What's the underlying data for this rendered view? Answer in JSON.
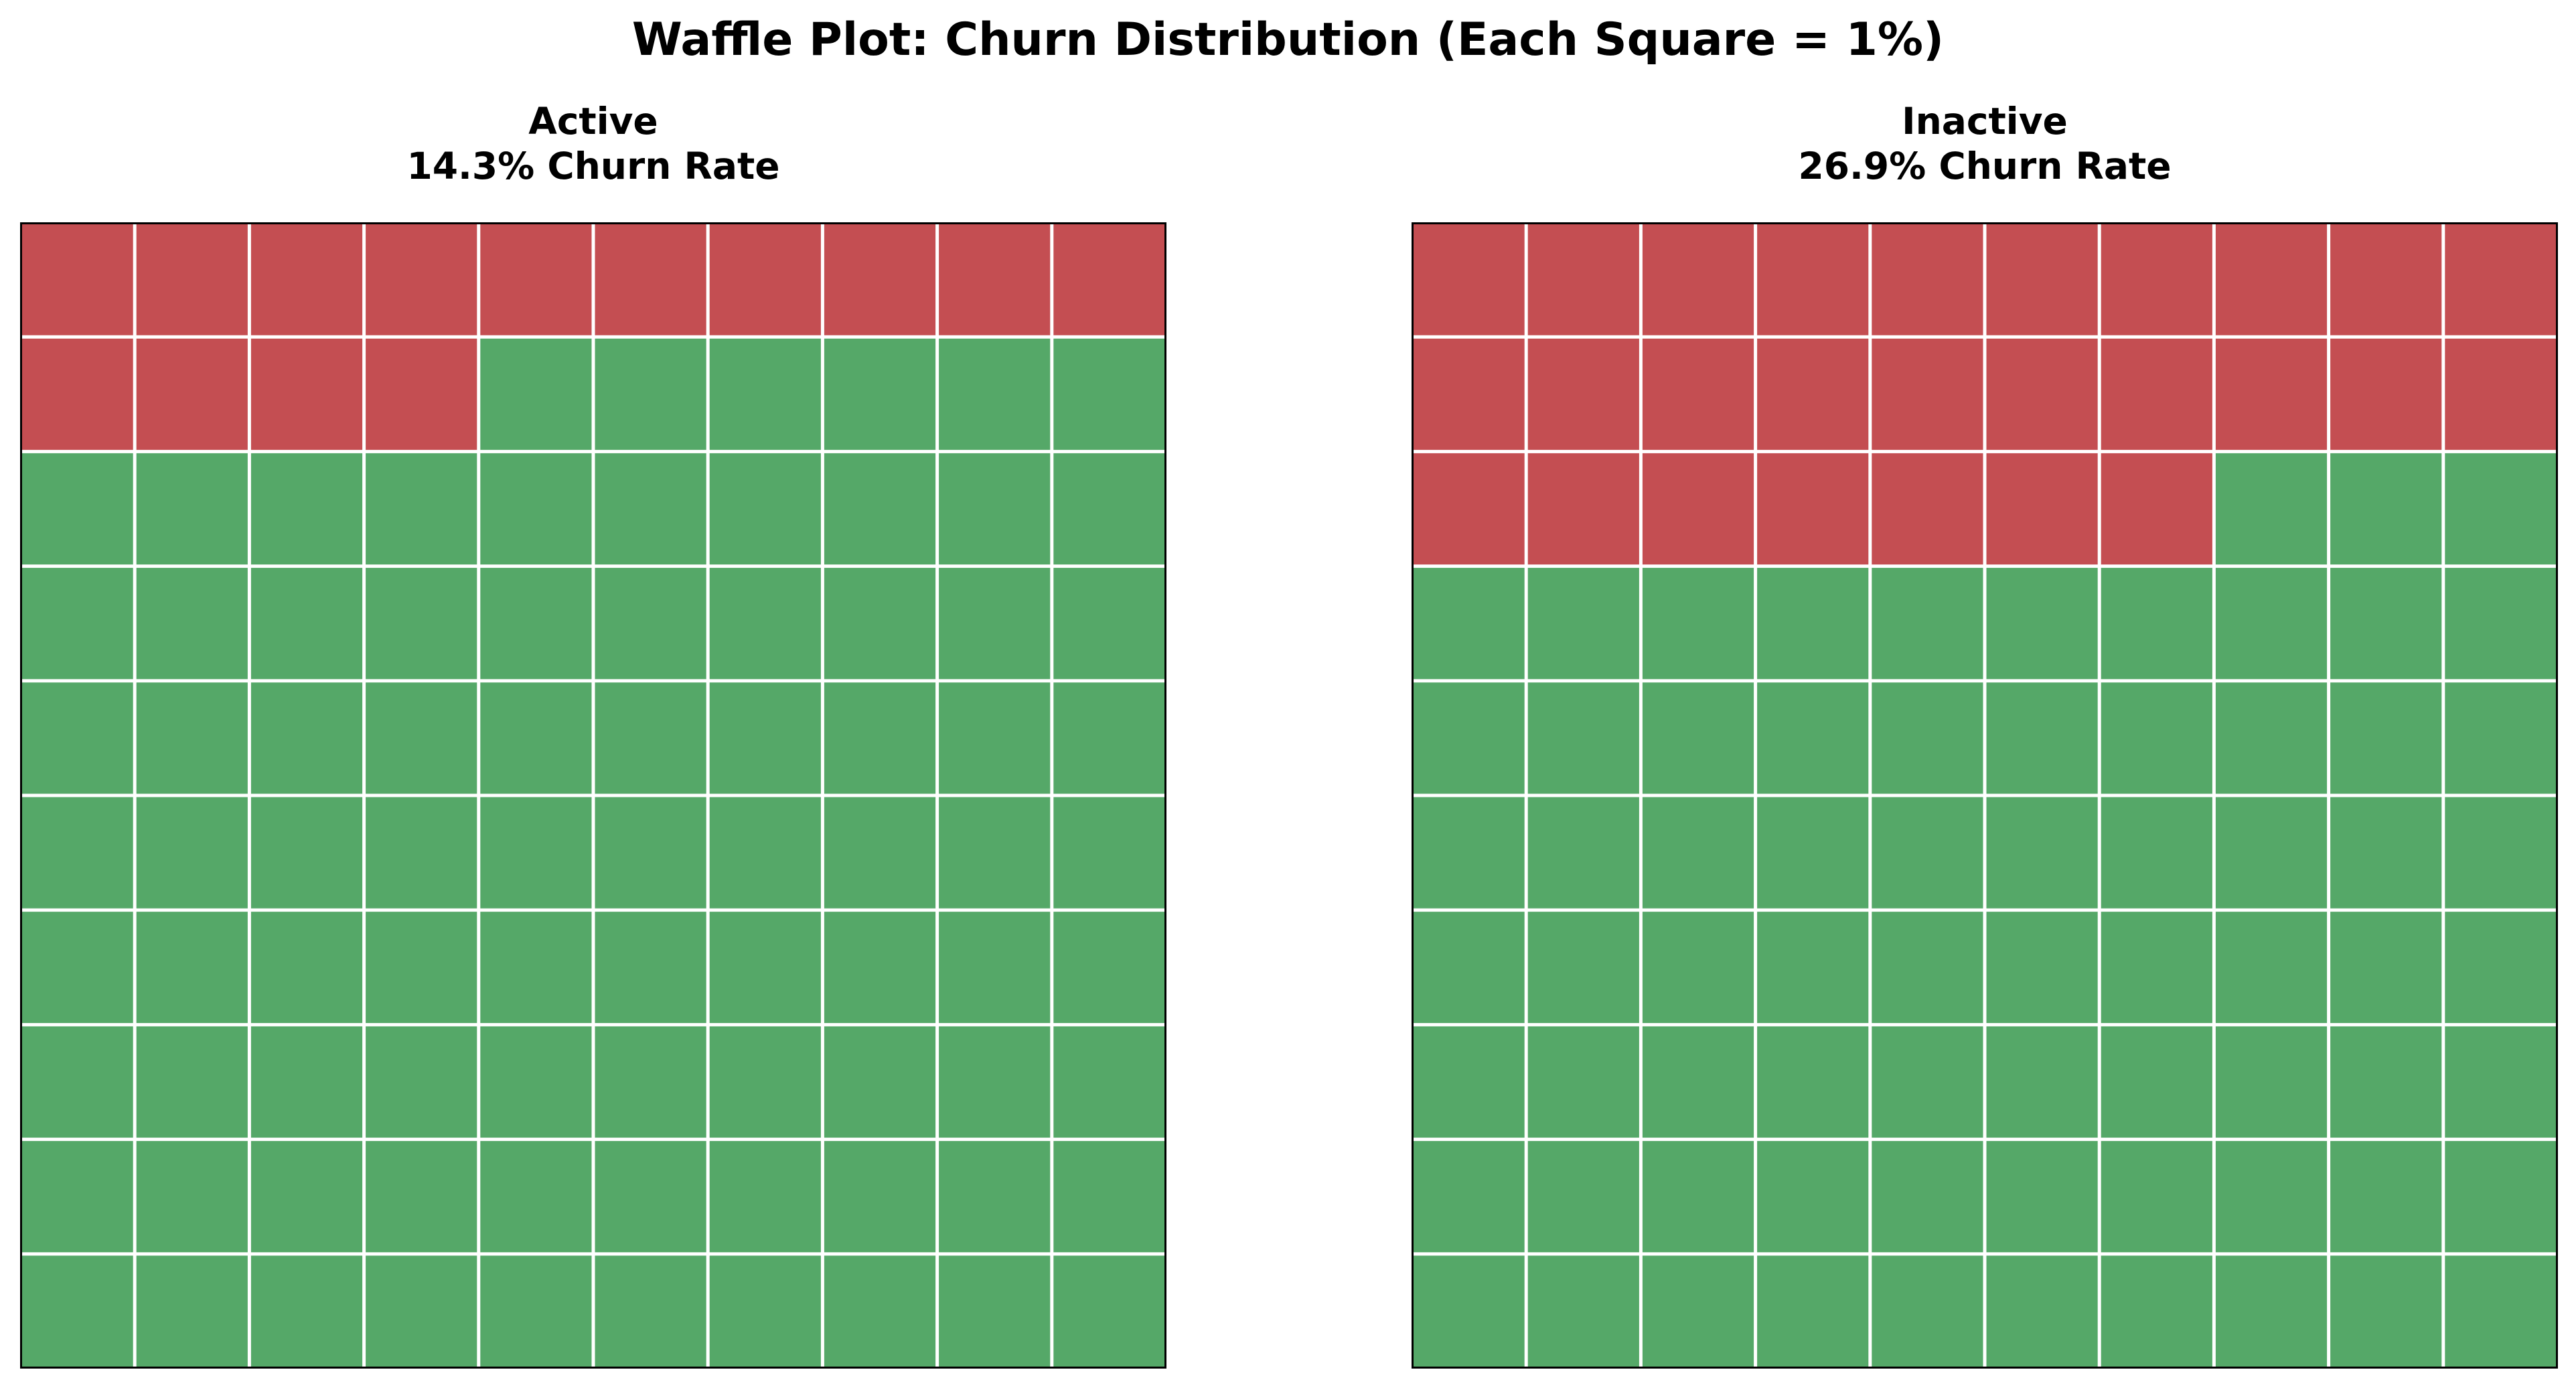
{
  "chart_data": {
    "type": "waffle",
    "title": "Waffle Plot: Churn Distribution (Each Square = 1%)",
    "grid": "10x10",
    "square_value_percent": 1,
    "colors": {
      "churned": "#c44e52",
      "retained": "#55a868",
      "gridline": "#ffffff",
      "frame": "#000000"
    },
    "panels": [
      {
        "category": "Active",
        "subtitle": "14.3% Churn Rate",
        "churn_rate": 14.3,
        "churned_squares": 14,
        "retained_squares": 86
      },
      {
        "category": "Inactive",
        "subtitle": "26.9% Churn Rate",
        "churn_rate": 26.9,
        "churned_squares": 27,
        "retained_squares": 73
      }
    ]
  }
}
